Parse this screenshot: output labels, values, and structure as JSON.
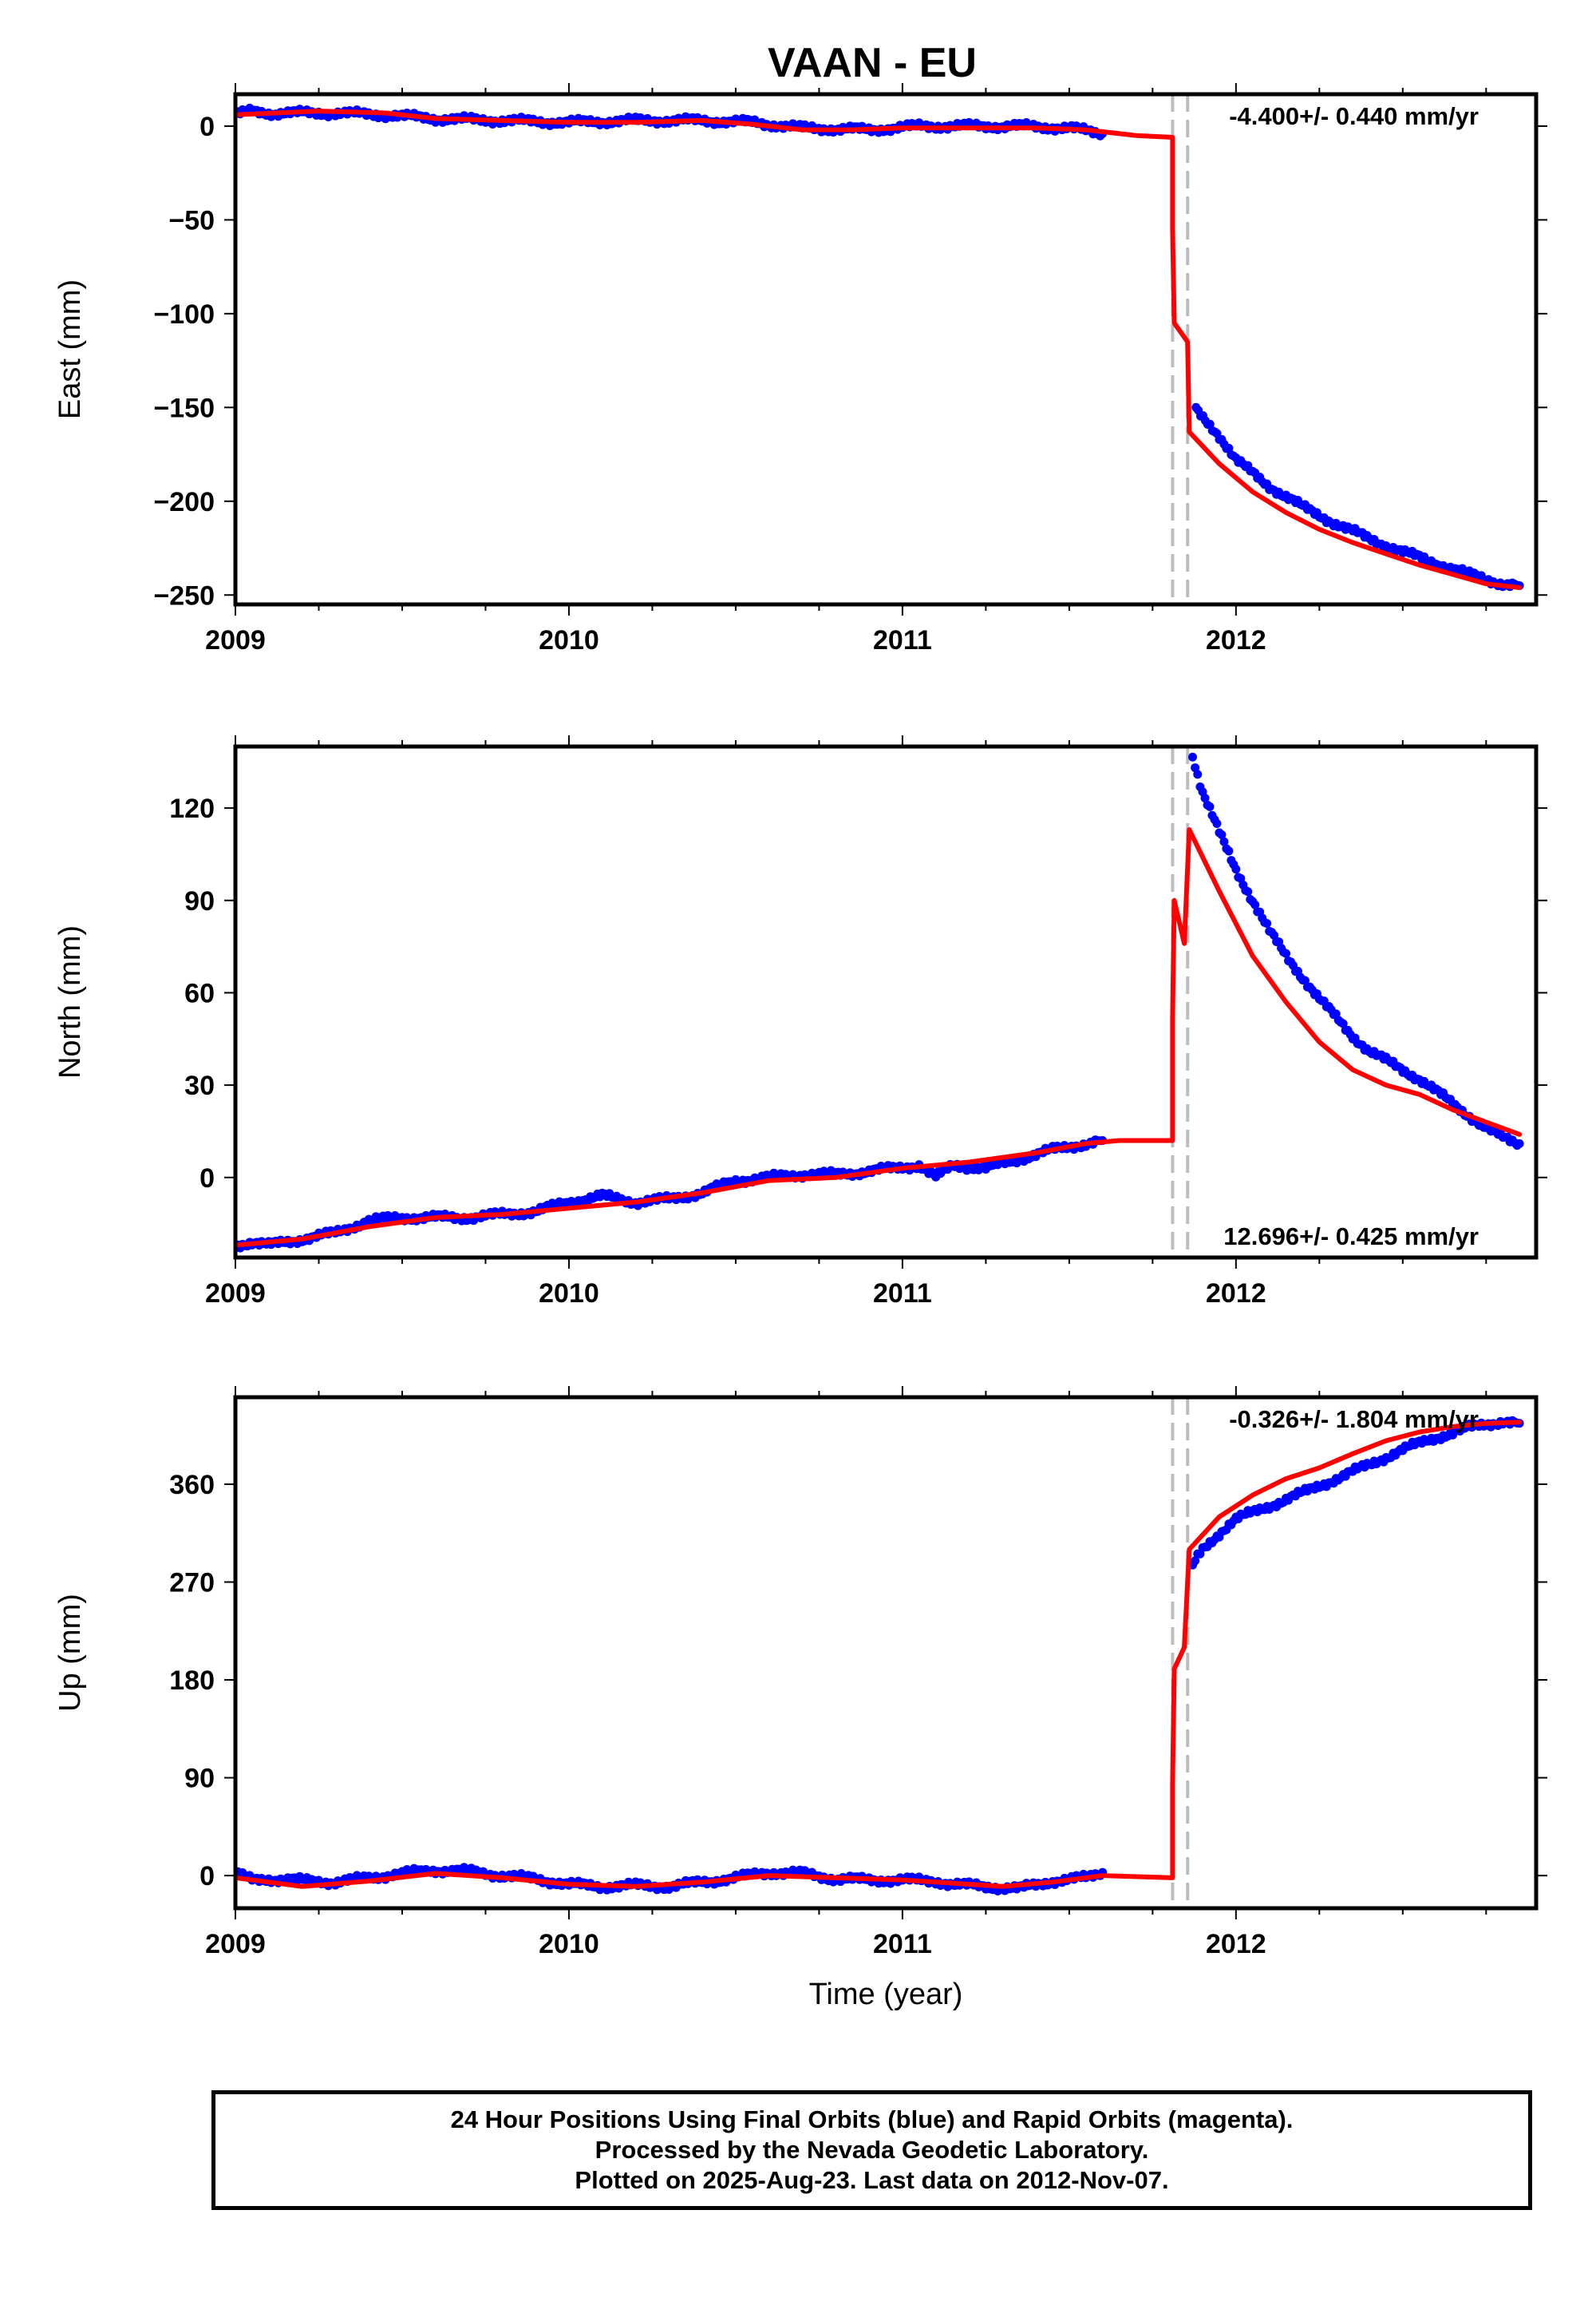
{
  "page": {
    "title": "VAAN - EU"
  },
  "colors": {
    "data_points": "#0000ff",
    "model_line": "#ff0000",
    "event_lines": "#bdbdbd",
    "frame": "#000000"
  },
  "chart_data": [
    {
      "type": "scatter",
      "panel": "east",
      "ylabel": "East (mm)",
      "xlabel": "",
      "xticks": [
        "2009",
        "2010",
        "2011",
        "2012"
      ],
      "yticks": [
        0,
        -50,
        -100,
        -150,
        -200,
        -250
      ],
      "xlim": [
        2009.0,
        2012.9
      ],
      "ylim": [
        -255,
        17
      ],
      "annotation": "-4.400+/- 0.440 mm/yr",
      "event_lines_x": [
        2011.81,
        2011.855
      ],
      "series": [
        {
          "style": "points",
          "segments": [
            [
              [
                2009.0,
                6
              ],
              [
                2009.05,
                8
              ],
              [
                2009.1,
                7
              ],
              [
                2009.3,
                7
              ],
              [
                2009.45,
                6
              ],
              [
                2009.6,
                4
              ],
              [
                2009.8,
                3
              ],
              [
                2010.0,
                2
              ],
              [
                2010.2,
                3
              ],
              [
                2010.4,
                3
              ],
              [
                2010.55,
                2
              ],
              [
                2010.7,
                -1
              ],
              [
                2010.9,
                -2
              ],
              [
                2011.05,
                0
              ],
              [
                2011.2,
                0
              ],
              [
                2011.35,
                0
              ],
              [
                2011.5,
                -1
              ],
              [
                2011.6,
                -4
              ]
            ],
            [
              [
                2011.88,
                -150
              ],
              [
                2011.95,
                -165
              ],
              [
                2012.0,
                -178
              ],
              [
                2012.1,
                -192
              ],
              [
                2012.2,
                -203
              ],
              [
                2012.3,
                -212
              ],
              [
                2012.4,
                -220
              ],
              [
                2012.5,
                -227
              ],
              [
                2012.6,
                -233
              ],
              [
                2012.7,
                -239
              ],
              [
                2012.8,
                -244
              ],
              [
                2012.85,
                -245
              ]
            ]
          ]
        },
        {
          "style": "line",
          "segments": [
            [
              [
                2009.0,
                6
              ],
              [
                2009.25,
                8
              ],
              [
                2009.45,
                7
              ],
              [
                2009.6,
                4
              ],
              [
                2009.8,
                3
              ],
              [
                2010.0,
                2
              ],
              [
                2010.2,
                2
              ],
              [
                2010.4,
                3
              ],
              [
                2010.55,
                1
              ],
              [
                2010.7,
                -2
              ],
              [
                2010.85,
                -2
              ],
              [
                2011.0,
                -1
              ],
              [
                2011.2,
                -1
              ],
              [
                2011.4,
                -1
              ],
              [
                2011.55,
                -2
              ],
              [
                2011.7,
                -5
              ],
              [
                2011.81,
                -6
              ],
              [
                2011.81,
                -55
              ],
              [
                2011.815,
                -105
              ],
              [
                2011.855,
                -115
              ],
              [
                2011.86,
                -163
              ],
              [
                2011.95,
                -180
              ],
              [
                2012.05,
                -195
              ],
              [
                2012.15,
                -206
              ],
              [
                2012.25,
                -215
              ],
              [
                2012.35,
                -222
              ],
              [
                2012.45,
                -228
              ],
              [
                2012.55,
                -234
              ],
              [
                2012.65,
                -239
              ],
              [
                2012.75,
                -244
              ],
              [
                2012.85,
                -246
              ]
            ]
          ]
        }
      ]
    },
    {
      "type": "scatter",
      "panel": "north",
      "ylabel": "North (mm)",
      "xlabel": "",
      "xticks": [
        "2009",
        "2010",
        "2011",
        "2012"
      ],
      "yticks": [
        120,
        90,
        60,
        30,
        0
      ],
      "xlim": [
        2009.0,
        2012.9
      ],
      "ylim": [
        -26,
        140
      ],
      "annotation": "12.696+/- 0.425 mm/yr",
      "event_lines_x": [
        2011.81,
        2011.855
      ],
      "series": [
        {
          "style": "points",
          "segments": [
            [
              [
                2009.0,
                -22
              ],
              [
                2009.05,
                -21
              ],
              [
                2009.1,
                -22
              ],
              [
                2009.3,
                -18
              ],
              [
                2009.4,
                -14
              ],
              [
                2009.5,
                -13
              ],
              [
                2009.6,
                -13
              ],
              [
                2009.7,
                -13
              ],
              [
                2009.8,
                -12
              ],
              [
                2009.9,
                -11
              ],
              [
                2010.0,
                -8
              ],
              [
                2010.1,
                -6
              ],
              [
                2010.2,
                -8
              ],
              [
                2010.3,
                -7
              ],
              [
                2010.4,
                -5
              ],
              [
                2010.5,
                -1
              ],
              [
                2010.6,
                0
              ],
              [
                2010.7,
                1
              ],
              [
                2010.8,
                1
              ],
              [
                2010.9,
                2
              ],
              [
                2011.05,
                4
              ],
              [
                2011.1,
                0
              ],
              [
                2011.15,
                4
              ],
              [
                2011.25,
                3
              ],
              [
                2011.35,
                6
              ],
              [
                2011.45,
                9
              ],
              [
                2011.55,
                11
              ],
              [
                2011.6,
                12
              ]
            ],
            [
              [
                2011.87,
                137
              ],
              [
                2011.9,
                125
              ],
              [
                2011.95,
                112
              ],
              [
                2012.0,
                100
              ],
              [
                2012.05,
                90
              ],
              [
                2012.1,
                80
              ],
              [
                2012.15,
                72
              ],
              [
                2012.2,
                65
              ],
              [
                2012.25,
                58
              ],
              [
                2012.3,
                52
              ],
              [
                2012.35,
                46
              ],
              [
                2012.4,
                41
              ],
              [
                2012.45,
                38
              ],
              [
                2012.5,
                35
              ],
              [
                2012.55,
                32
              ],
              [
                2012.6,
                28
              ],
              [
                2012.65,
                24
              ],
              [
                2012.7,
                20
              ],
              [
                2012.75,
                16
              ],
              [
                2012.8,
                13
              ],
              [
                2012.85,
                11
              ]
            ]
          ]
        },
        {
          "style": "line",
          "segments": [
            [
              [
                2009.0,
                -22
              ],
              [
                2009.2,
                -20
              ],
              [
                2009.4,
                -16
              ],
              [
                2009.6,
                -13
              ],
              [
                2009.8,
                -12
              ],
              [
                2010.0,
                -10
              ],
              [
                2010.2,
                -8
              ],
              [
                2010.4,
                -5
              ],
              [
                2010.6,
                -1
              ],
              [
                2010.8,
                0
              ],
              [
                2011.0,
                3
              ],
              [
                2011.2,
                5
              ],
              [
                2011.4,
                8
              ],
              [
                2011.55,
                11
              ],
              [
                2011.65,
                12
              ],
              [
                2011.75,
                12
              ],
              [
                2011.81,
                12
              ],
              [
                2011.81,
                52
              ],
              [
                2011.815,
                90
              ],
              [
                2011.845,
                76
              ],
              [
                2011.86,
                113
              ],
              [
                2011.95,
                93
              ],
              [
                2012.05,
                72
              ],
              [
                2012.15,
                57
              ],
              [
                2012.25,
                44
              ],
              [
                2012.35,
                35
              ],
              [
                2012.45,
                30
              ],
              [
                2012.55,
                27
              ],
              [
                2012.65,
                22
              ],
              [
                2012.75,
                18
              ],
              [
                2012.85,
                14
              ]
            ]
          ]
        }
      ]
    },
    {
      "type": "scatter",
      "panel": "up",
      "ylabel": "Up (mm)",
      "xlabel": "Time (year)",
      "xticks": [
        "2009",
        "2010",
        "2011",
        "2012"
      ],
      "yticks": [
        360,
        270,
        180,
        90,
        0
      ],
      "xlim": [
        2009.0,
        2012.9
      ],
      "ylim": [
        -30,
        440
      ],
      "annotation": "-0.326+/- 1.804 mm/yr",
      "event_lines_x": [
        2011.81,
        2011.855
      ],
      "series": [
        {
          "style": "points",
          "segments": [
            [
              [
                2009.0,
                2
              ],
              [
                2009.05,
                -4
              ],
              [
                2009.1,
                -3
              ],
              [
                2009.3,
                -6
              ],
              [
                2009.4,
                -2
              ],
              [
                2009.5,
                2
              ],
              [
                2009.6,
                5
              ],
              [
                2009.7,
                4
              ],
              [
                2009.8,
                0
              ],
              [
                2009.9,
                -3
              ],
              [
                2010.0,
                -8
              ],
              [
                2010.1,
                -10
              ],
              [
                2010.2,
                -9
              ],
              [
                2010.3,
                -10
              ],
              [
                2010.4,
                -6
              ],
              [
                2010.5,
                -2
              ],
              [
                2010.6,
                3
              ],
              [
                2010.7,
                2
              ],
              [
                2010.8,
                -3
              ],
              [
                2010.9,
                -4
              ],
              [
                2011.0,
                -4
              ],
              [
                2011.1,
                -5
              ],
              [
                2011.15,
                -8
              ],
              [
                2011.25,
                -10
              ],
              [
                2011.35,
                -12
              ],
              [
                2011.45,
                -5
              ],
              [
                2011.55,
                -2
              ],
              [
                2011.6,
                3
              ]
            ],
            [
              [
                2011.87,
                285
              ],
              [
                2011.9,
                300
              ],
              [
                2011.95,
                315
              ],
              [
                2012.0,
                328
              ],
              [
                2012.1,
                340
              ],
              [
                2012.2,
                352
              ],
              [
                2012.3,
                365
              ],
              [
                2012.4,
                378
              ],
              [
                2012.5,
                392
              ],
              [
                2012.6,
                403
              ],
              [
                2012.7,
                412
              ],
              [
                2012.8,
                418
              ],
              [
                2012.85,
                416
              ]
            ]
          ]
        },
        {
          "style": "line",
          "segments": [
            [
              [
                2009.0,
                -2
              ],
              [
                2009.2,
                -10
              ],
              [
                2009.4,
                -5
              ],
              [
                2009.6,
                2
              ],
              [
                2009.8,
                -2
              ],
              [
                2010.0,
                -8
              ],
              [
                2010.2,
                -10
              ],
              [
                2010.4,
                -6
              ],
              [
                2010.6,
                0
              ],
              [
                2010.8,
                -2
              ],
              [
                2011.0,
                -4
              ],
              [
                2011.2,
                -8
              ],
              [
                2011.3,
                -10
              ],
              [
                2011.45,
                -6
              ],
              [
                2011.6,
                0
              ],
              [
                2011.81,
                -2
              ],
              [
                2011.81,
                85
              ],
              [
                2011.815,
                190
              ],
              [
                2011.845,
                210
              ],
              [
                2011.86,
                300
              ],
              [
                2011.95,
                330
              ],
              [
                2012.05,
                350
              ],
              [
                2012.15,
                365
              ],
              [
                2012.25,
                375
              ],
              [
                2012.35,
                388
              ],
              [
                2012.45,
                400
              ],
              [
                2012.55,
                408
              ],
              [
                2012.65,
                413
              ],
              [
                2012.75,
                416
              ],
              [
                2012.85,
                417
              ]
            ]
          ]
        }
      ]
    }
  ],
  "footer": {
    "line1": "24 Hour Positions Using Final Orbits (blue) and Rapid Orbits (magenta).",
    "line2": "Processed by the Nevada Geodetic Laboratory.",
    "line3": "Plotted on 2025-Aug-23. Last data on 2012-Nov-07."
  }
}
